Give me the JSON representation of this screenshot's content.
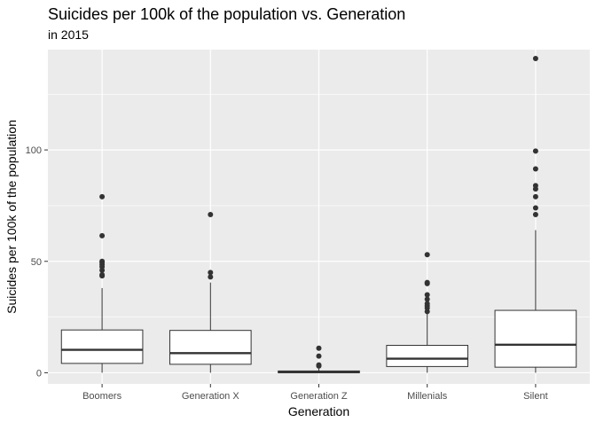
{
  "chart_data": {
    "type": "boxplot",
    "title": "Suicides per 100k of the population vs. Generation",
    "subtitle": "in 2015",
    "xlabel": "Generation",
    "ylabel": "Suicides per 100k of the population",
    "ylim": [
      -5,
      145
    ],
    "yticks": [
      0,
      50,
      100
    ],
    "grid": true,
    "categories": [
      "Boomers",
      "Generation X",
      "Generation Z",
      "Millenials",
      "Silent"
    ],
    "boxes": [
      {
        "category": "Boomers",
        "min": 0,
        "q1": 4.2,
        "median": 10.3,
        "q3": 19.2,
        "max": 38,
        "outliers": [
          43.5,
          44,
          46,
          47.5,
          48.5,
          49.5,
          50,
          61.5,
          79
        ]
      },
      {
        "category": "Generation X",
        "min": 0,
        "q1": 3.8,
        "median": 8.8,
        "q3": 19,
        "max": 40.5,
        "outliers": [
          43,
          45,
          71
        ]
      },
      {
        "category": "Generation Z",
        "min": 0,
        "q1": 0,
        "median": 0.3,
        "q3": 0.8,
        "max": 1.8,
        "outliers": [
          3,
          3.5,
          7.5,
          11
        ]
      },
      {
        "category": "Millenials",
        "min": 0,
        "q1": 2.8,
        "median": 6.3,
        "q3": 12.3,
        "max": 26.5,
        "outliers": [
          27.5,
          29,
          30,
          31,
          33,
          35,
          40,
          40.5,
          53
        ]
      },
      {
        "category": "Silent",
        "min": 0,
        "q1": 2.5,
        "median": 12.6,
        "q3": 28,
        "max": 64,
        "outliers": [
          71,
          74,
          79,
          82.5,
          84,
          91.5,
          99.5,
          141
        ]
      }
    ],
    "colors": {
      "panel": "#ebebeb",
      "grid_major": "#ffffff",
      "box_fill": "#ffffff",
      "box_line": "#333333",
      "point": "#333333",
      "tick_text": "#4d4d4d"
    }
  }
}
